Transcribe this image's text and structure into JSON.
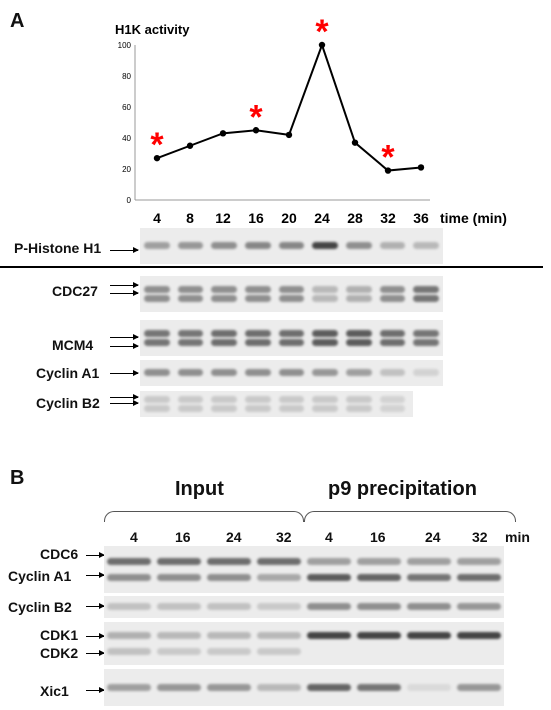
{
  "panelA": {
    "letter": "A",
    "chart_data": {
      "type": "line",
      "title": "H1K activity",
      "xlabel": "time (min)",
      "ylabel": "",
      "x": [
        4,
        8,
        12,
        16,
        20,
        24,
        28,
        32,
        36
      ],
      "series": [
        {
          "values": [
            27,
            35,
            43,
            45,
            42,
            100,
            37,
            19,
            21
          ]
        }
      ],
      "ylim": [
        0,
        100
      ],
      "yticks": [
        0,
        20,
        40,
        60,
        80,
        100
      ],
      "asterisks_at": [
        4,
        16,
        24,
        32
      ],
      "colors": {
        "line": "#000000",
        "asterisk": "#ff0000"
      }
    },
    "blots": [
      {
        "label": "P-Histone H1",
        "arrows": 1,
        "intensities": [
          0.45,
          0.5,
          0.55,
          0.6,
          0.6,
          1.0,
          0.55,
          0.35,
          0.3
        ]
      },
      {
        "label": "CDC27",
        "arrows": 2,
        "intensities": [
          0.55,
          0.55,
          0.55,
          0.55,
          0.55,
          0.3,
          0.35,
          0.55,
          0.7
        ]
      },
      {
        "label": "MCM4",
        "arrows": 2,
        "intensities": [
          0.7,
          0.7,
          0.75,
          0.75,
          0.75,
          0.85,
          0.85,
          0.75,
          0.7
        ]
      },
      {
        "label": "Cyclin A1",
        "arrows": 1,
        "intensities": [
          0.55,
          0.55,
          0.55,
          0.55,
          0.55,
          0.5,
          0.45,
          0.25,
          0.15
        ]
      },
      {
        "label": "Cyclin B2",
        "arrows": 2,
        "intensities": [
          0.2,
          0.2,
          0.2,
          0.2,
          0.2,
          0.2,
          0.2,
          0.15,
          0.0
        ]
      }
    ]
  },
  "panelB": {
    "letter": "B",
    "group_input": "Input",
    "group_p9": "p9 precipitation",
    "times": [
      "4",
      "16",
      "24",
      "32",
      "4",
      "16",
      "24",
      "32"
    ],
    "unit": "min",
    "blots": [
      {
        "labels": [
          "CDC6",
          "Cyclin A1"
        ]
      },
      {
        "labels": [
          "Cyclin B2"
        ]
      },
      {
        "labels": [
          "CDK1",
          "CDK2"
        ]
      },
      {
        "labels": [
          "Xic1"
        ]
      }
    ]
  }
}
